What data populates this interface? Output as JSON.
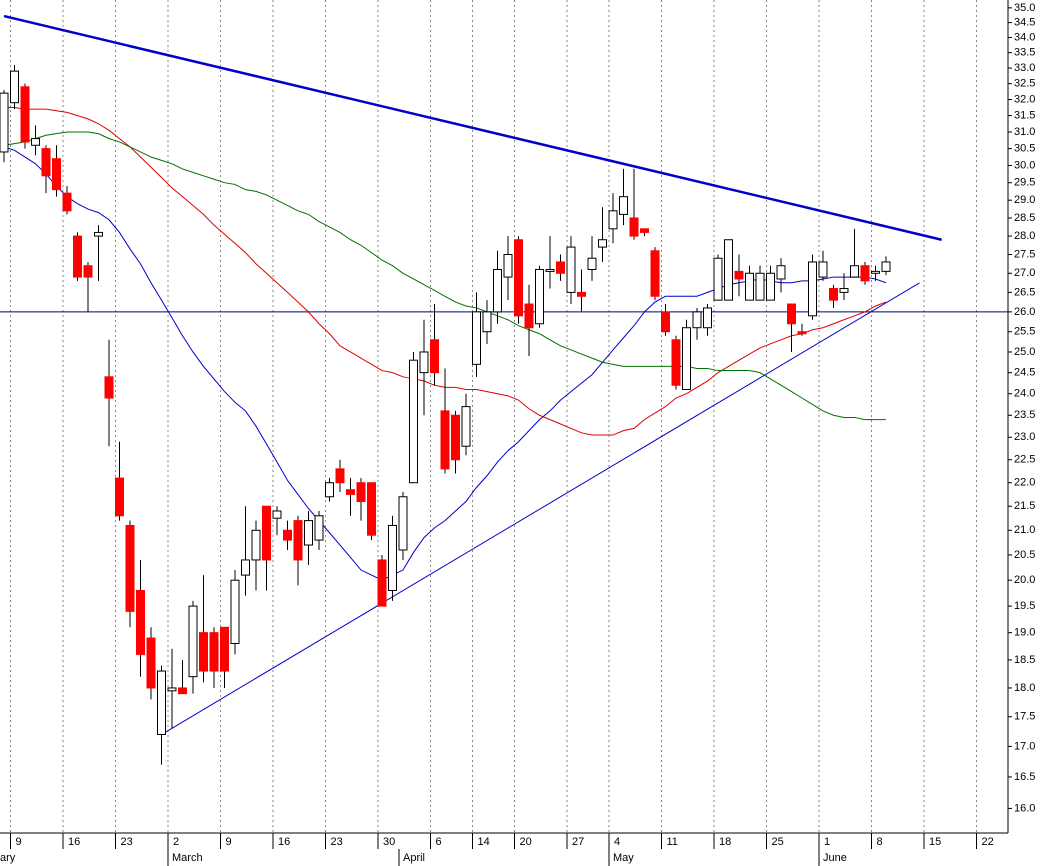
{
  "chart_data": {
    "type": "candlestick",
    "log_scale": true,
    "grid": true,
    "up_color": "#ffffff",
    "down_color": "#ff0000",
    "categories": [
      null,
      "9",
      null,
      null,
      null,
      null,
      "16",
      null,
      null,
      null,
      null,
      "23",
      null,
      null,
      null,
      null,
      "2",
      null,
      null,
      null,
      null,
      "9",
      null,
      null,
      null,
      null,
      "16",
      null,
      null,
      null,
      null,
      "23",
      null,
      null,
      null,
      null,
      "30",
      null,
      null,
      null,
      null,
      "6",
      null,
      null,
      null,
      "14",
      null,
      null,
      null,
      "20",
      null,
      null,
      null,
      null,
      "27",
      null,
      null,
      null,
      "4",
      null,
      null,
      null,
      null,
      "11",
      null,
      null,
      null,
      null,
      "18",
      null,
      null,
      null,
      null,
      "25",
      null,
      null,
      null,
      null,
      "1",
      null,
      null,
      null,
      null,
      "8",
      null,
      null,
      null,
      null,
      "15",
      null,
      null,
      null,
      null,
      "22",
      null,
      null
    ],
    "months": [
      "ary",
      null,
      null,
      null,
      null,
      null,
      null,
      null,
      null,
      null,
      null,
      null,
      null,
      null,
      null,
      null,
      "March",
      null,
      null,
      null,
      null,
      null,
      null,
      null,
      null,
      null,
      null,
      null,
      null,
      null,
      null,
      null,
      null,
      null,
      null,
      null,
      null,
      null,
      "April",
      null,
      null,
      null,
      null,
      null,
      null,
      null,
      null,
      null,
      null,
      null,
      null,
      null,
      null,
      null,
      null,
      null,
      null,
      null,
      "May",
      null,
      null,
      null,
      null,
      null,
      null,
      null,
      null,
      null,
      null,
      null,
      null,
      null,
      null,
      null,
      null,
      null,
      null,
      null,
      "June",
      null,
      null,
      null,
      null,
      null,
      null,
      null,
      null,
      null,
      null,
      null,
      null,
      null,
      null,
      null,
      null,
      null
    ],
    "open": [
      30.4,
      31.9,
      32.4,
      30.6,
      30.5,
      30.2,
      29.2,
      28.0,
      27.2,
      28.0,
      24.4,
      22.1,
      21.1,
      19.8,
      18.9,
      17.2,
      17.95,
      18.0,
      18.2,
      19.0,
      19.0,
      19.1,
      18.8,
      20.1,
      20.4,
      21.5,
      21.25,
      21.0,
      21.2,
      20.7,
      20.8,
      21.7,
      22.3,
      21.85,
      22.0,
      22.0,
      20.4,
      19.8,
      20.6,
      22.0,
      24.5,
      25.3,
      23.6,
      23.5,
      22.8,
      24.7,
      25.5,
      26.0,
      26.9,
      27.9,
      26.2,
      25.7,
      27.05,
      27.3,
      26.5,
      26.5,
      27.1,
      27.7,
      28.2,
      28.6,
      28.5,
      28.2,
      27.6,
      26.0,
      25.3,
      24.1,
      25.6,
      25.6,
      26.3,
      26.3,
      27.05,
      26.3,
      26.3,
      26.3,
      26.85,
      26.2,
      25.5,
      25.9,
      26.9,
      26.6,
      26.5,
      26.9,
      27.2,
      27.0,
      27.05,
      null,
      null,
      null,
      null,
      null,
      null,
      null,
      null,
      null,
      null,
      null
    ],
    "high": [
      32.3,
      33.1,
      32.5,
      31.2,
      30.6,
      30.6,
      29.4,
      28.1,
      27.3,
      28.3,
      25.3,
      22.9,
      21.2,
      20.4,
      19.1,
      18.4,
      18.7,
      18.5,
      19.6,
      20.1,
      19.1,
      19.1,
      20.2,
      21.5,
      21.2,
      21.5,
      21.5,
      21.2,
      21.3,
      21.4,
      21.4,
      22.1,
      22.5,
      22.1,
      22.1,
      22.0,
      20.5,
      21.3,
      21.8,
      25.0,
      25.8,
      26.2,
      24.6,
      23.6,
      24.0,
      26.5,
      26.3,
      27.6,
      28.0,
      28.0,
      26.7,
      27.2,
      28.0,
      27.5,
      28.0,
      27.1,
      28.0,
      28.8,
      29.2,
      29.9,
      29.9,
      28.2,
      27.7,
      26.2,
      25.4,
      25.8,
      26.1,
      26.2,
      27.5,
      27.9,
      27.5,
      27.2,
      27.2,
      27.2,
      27.4,
      26.2,
      25.7,
      27.5,
      27.6,
      26.7,
      27.0,
      28.2,
      27.3,
      27.2,
      27.45,
      null,
      null,
      null,
      null,
      null,
      null,
      null,
      null,
      null,
      null,
      null
    ],
    "low": [
      30.1,
      31.7,
      30.5,
      30.3,
      29.2,
      29.1,
      28.6,
      26.8,
      26.0,
      26.8,
      22.8,
      21.2,
      19.1,
      18.2,
      17.8,
      16.7,
      17.3,
      17.9,
      17.9,
      18.1,
      18.0,
      18.0,
      18.6,
      19.7,
      19.8,
      19.8,
      20.9,
      20.6,
      19.9,
      20.3,
      20.6,
      21.6,
      21.8,
      21.3,
      21.2,
      20.8,
      19.5,
      19.6,
      20.4,
      22.0,
      23.5,
      24.2,
      22.2,
      22.2,
      22.6,
      24.4,
      25.2,
      25.7,
      26.3,
      25.7,
      24.9,
      25.6,
      26.6,
      26.8,
      26.2,
      26.0,
      26.8,
      27.3,
      27.8,
      28.3,
      27.9,
      28.0,
      26.3,
      25.4,
      24.1,
      24.1,
      25.3,
      25.4,
      26.3,
      26.3,
      26.4,
      26.3,
      26.3,
      26.3,
      26.5,
      25.0,
      25.4,
      25.8,
      26.8,
      26.1,
      26.3,
      26.9,
      26.7,
      26.8,
      26.95,
      null,
      null,
      null,
      null,
      null,
      null,
      null,
      null,
      null,
      null,
      null
    ],
    "close": [
      32.2,
      32.9,
      30.7,
      30.8,
      29.7,
      29.3,
      28.7,
      26.9,
      26.9,
      28.1,
      23.9,
      21.3,
      19.4,
      18.6,
      18.0,
      18.3,
      18.0,
      17.9,
      19.5,
      18.3,
      18.3,
      18.3,
      20.0,
      20.4,
      21.0,
      20.4,
      21.4,
      20.8,
      20.4,
      21.2,
      21.3,
      22.0,
      22.0,
      21.75,
      21.6,
      20.9,
      19.5,
      21.1,
      21.7,
      24.8,
      25.0,
      24.5,
      22.3,
      22.5,
      23.7,
      26.0,
      26.0,
      27.1,
      27.5,
      25.9,
      25.6,
      27.1,
      27.1,
      27.0,
      27.7,
      26.4,
      27.4,
      27.9,
      28.7,
      29.1,
      28.0,
      28.1,
      26.4,
      25.5,
      24.2,
      25.6,
      26.0,
      26.1,
      27.4,
      27.9,
      26.85,
      27.0,
      27.0,
      27.0,
      27.2,
      25.7,
      25.45,
      27.3,
      27.3,
      26.3,
      26.6,
      27.2,
      26.8,
      27.05,
      27.3,
      null,
      null,
      null,
      null,
      null,
      null,
      null,
      null,
      null,
      null,
      null
    ],
    "series": [
      {
        "color": "#0000cc",
        "values": [
          30.55,
          30.45,
          30.25,
          30.05,
          29.75,
          29.4,
          29.1,
          28.9,
          28.75,
          28.65,
          28.45,
          28.1,
          27.65,
          27.25,
          26.75,
          26.3,
          25.85,
          25.4,
          25.0,
          24.65,
          24.35,
          24.05,
          23.8,
          23.6,
          23.25,
          22.85,
          22.45,
          22.05,
          21.75,
          21.45,
          21.2,
          20.95,
          20.7,
          20.45,
          20.2,
          20.1,
          20.0,
          20.1,
          20.2,
          20.55,
          20.85,
          21.05,
          21.2,
          21.4,
          21.6,
          21.9,
          22.15,
          22.45,
          22.7,
          22.9,
          23.15,
          23.4,
          23.6,
          23.85,
          24.05,
          24.25,
          24.45,
          24.75,
          25.05,
          25.35,
          25.65,
          26.0,
          26.25,
          26.4,
          26.4,
          26.4,
          26.4,
          26.5,
          26.6,
          26.7,
          26.75,
          26.8,
          26.85,
          26.8,
          26.75,
          26.75,
          26.8,
          26.8,
          26.85,
          26.9,
          26.9,
          26.9,
          26.9,
          26.85,
          26.75,
          null,
          null,
          null,
          null,
          null,
          null,
          null,
          null,
          null,
          null,
          null
        ]
      },
      {
        "color": "#e00000",
        "values": [
          31.75,
          31.75,
          31.7,
          31.7,
          31.7,
          31.65,
          31.6,
          31.5,
          31.4,
          31.25,
          31.05,
          30.8,
          30.55,
          30.25,
          29.95,
          29.65,
          29.35,
          29.1,
          28.85,
          28.6,
          28.3,
          28.05,
          27.8,
          27.55,
          27.25,
          27.0,
          26.75,
          26.5,
          26.25,
          26.0,
          25.7,
          25.45,
          25.15,
          25.0,
          24.85,
          24.7,
          24.55,
          24.5,
          24.4,
          24.35,
          24.3,
          24.2,
          24.15,
          24.15,
          24.1,
          24.1,
          24.05,
          24.0,
          23.95,
          23.85,
          23.65,
          23.5,
          23.4,
          23.3,
          23.2,
          23.1,
          23.05,
          23.05,
          23.05,
          23.15,
          23.2,
          23.4,
          23.55,
          23.7,
          23.9,
          24.0,
          24.15,
          24.3,
          24.5,
          24.65,
          24.8,
          24.95,
          25.1,
          25.2,
          25.3,
          25.4,
          25.45,
          25.55,
          25.6,
          25.7,
          25.8,
          25.9,
          26.0,
          26.15,
          26.25,
          null,
          null,
          null,
          null,
          null,
          null,
          null,
          null,
          null,
          null,
          null
        ]
      },
      {
        "color": "#007000",
        "values": [
          30.6,
          30.65,
          30.7,
          30.8,
          30.9,
          30.95,
          31.0,
          31.0,
          31.0,
          30.95,
          30.8,
          30.7,
          30.55,
          30.4,
          30.25,
          30.15,
          30.05,
          29.9,
          29.8,
          29.7,
          29.6,
          29.5,
          29.45,
          29.3,
          29.25,
          29.15,
          29.0,
          28.85,
          28.7,
          28.6,
          28.4,
          28.25,
          28.1,
          27.9,
          27.75,
          27.55,
          27.35,
          27.2,
          27.0,
          26.85,
          26.7,
          26.55,
          26.4,
          26.25,
          26.15,
          26.1,
          26.0,
          25.9,
          25.8,
          25.65,
          25.55,
          25.45,
          25.3,
          25.15,
          25.05,
          24.95,
          24.85,
          24.75,
          24.7,
          24.65,
          24.65,
          24.65,
          24.65,
          24.65,
          24.65,
          24.65,
          24.6,
          24.6,
          24.55,
          24.55,
          24.55,
          24.55,
          24.5,
          24.35,
          24.2,
          24.05,
          23.9,
          23.75,
          23.6,
          23.5,
          23.45,
          23.45,
          23.4,
          23.4,
          23.4,
          null,
          null,
          null,
          null,
          null,
          null,
          null,
          null,
          null,
          null,
          null
        ]
      }
    ],
    "trendlines": [
      {
        "color": "#0000cc",
        "x": [
          0,
          89.3
        ],
        "values": [
          34.72,
          27.9
        ]
      },
      {
        "color": "#0000cc",
        "x": [
          15.2,
          87.2
        ],
        "values": [
          17.22,
          26.75
        ]
      }
    ],
    "hline": {
      "value": 26,
      "color": "#000080"
    },
    "ylim": [
      15.62,
      35.27
    ],
    "yticks": [
      {
        "value": 16,
        "label": "16.0"
      },
      16.5,
      {
        "value": 17,
        "label": "17.0"
      },
      17.5,
      {
        "value": 18,
        "label": "18.0"
      },
      18.5,
      {
        "value": 19,
        "label": "19.0"
      },
      19.5,
      {
        "value": 20,
        "label": "20.0"
      },
      20.5,
      {
        "value": 21,
        "label": "21.0"
      },
      21.5,
      {
        "value": 22,
        "label": "22.0"
      },
      22.5,
      {
        "value": 23,
        "label": "23.0"
      },
      23.5,
      {
        "value": 24,
        "label": "24.0"
      },
      24.5,
      {
        "value": 25,
        "label": "25.0"
      },
      25.5,
      {
        "value": 26,
        "label": "26.0"
      },
      26.5,
      {
        "value": 27,
        "label": "27.0"
      },
      27.5,
      {
        "value": 28,
        "label": "28.0"
      },
      28.5,
      {
        "value": 29,
        "label": "29.0"
      },
      29.5,
      {
        "value": 30,
        "label": "30.0"
      },
      30.5,
      {
        "value": 31,
        "label": "31.0"
      },
      31.5,
      {
        "value": 32,
        "label": "32.0"
      },
      32.5,
      {
        "value": 33,
        "label": "33.0"
      },
      33.5,
      {
        "value": 34,
        "label": "34.0"
      },
      34.5,
      {
        "value": 35,
        "label": "35.0"
      }
    ]
  }
}
